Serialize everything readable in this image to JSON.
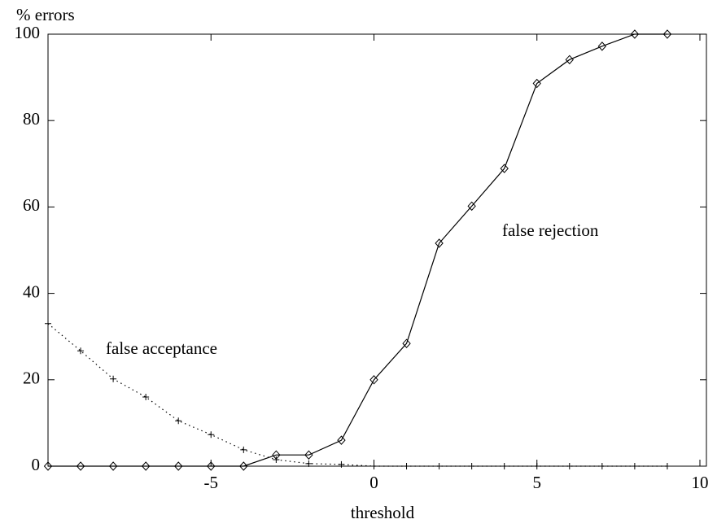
{
  "chart_data": {
    "type": "line",
    "ylabel": "% errors",
    "xlabel": "threshold",
    "x": [
      -10,
      -9,
      -8,
      -7,
      -6,
      -5,
      -4,
      -3,
      -2,
      -1,
      0,
      1,
      2,
      3,
      4,
      5,
      6,
      7,
      8,
      9
    ],
    "series": [
      {
        "name": "false rejection",
        "color": "#000000",
        "marker": "diamond",
        "line_style": "solid",
        "values": [
          0,
          0,
          0,
          0,
          0,
          0,
          0,
          2.6,
          2.6,
          6,
          20,
          28.4,
          51.6,
          60.2,
          68.9,
          88.6,
          94.1,
          97.2,
          100,
          100
        ]
      },
      {
        "name": "false acceptance",
        "color": "#000000",
        "marker": "plus",
        "line_style": "dotted",
        "values": [
          33,
          26.7,
          20.2,
          16,
          10.5,
          7.3,
          3.8,
          1.5,
          0.6,
          0.4,
          0,
          0,
          0,
          0,
          0,
          0,
          0,
          0,
          0,
          0
        ]
      }
    ],
    "xlim": [
      -10,
      10.2
    ],
    "ylim": [
      0,
      100
    ],
    "xticks": [
      -5,
      0,
      5,
      10
    ],
    "yticks": [
      0,
      20,
      40,
      60,
      80,
      100
    ]
  }
}
